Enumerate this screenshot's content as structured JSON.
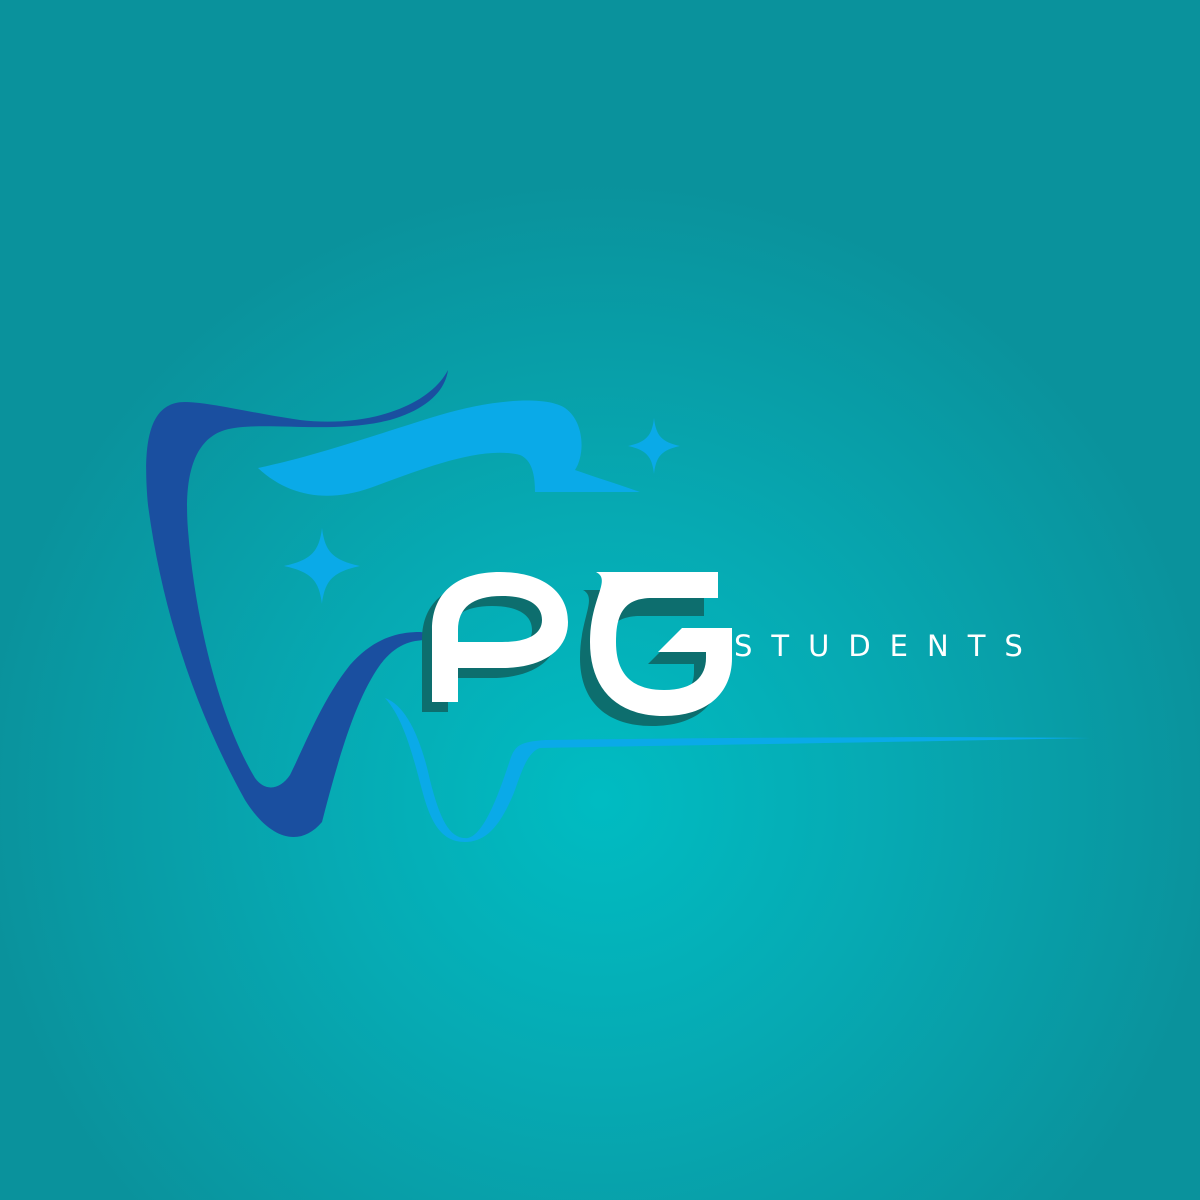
{
  "logo": {
    "monogram": "PG",
    "tagline": "STUDENTS",
    "colors": {
      "background": "#06aab3",
      "tooth_outline": "#1a4fa0",
      "tooth_accent": "#0aaae8",
      "letter_fill": "#ffffff",
      "letter_shadow": "#0d6e6e",
      "sparkle": "#0aaae8"
    },
    "icons": [
      "tooth-icon",
      "sparkle-icon",
      "sparkle-icon"
    ]
  }
}
